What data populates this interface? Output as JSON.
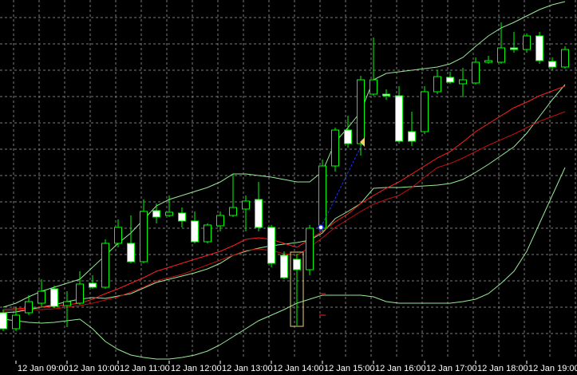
{
  "chart_data": {
    "type": "candlestick",
    "categories": [
      null,
      "12 Jan 09:00",
      null,
      null,
      null,
      "12 Jan 10:00",
      null,
      null,
      null,
      "12 Jan 11:00",
      null,
      null,
      null,
      "12 Jan 12:00",
      null,
      null,
      null,
      "12 Jan 13:00",
      null,
      null,
      null,
      "12 Jan 14:00",
      null,
      null,
      null,
      "12 Jan 15:00",
      null,
      null,
      null,
      "12 Jan 16:00",
      null,
      null,
      null,
      "12 Jan 17:00",
      null,
      null,
      null,
      "12 Jan 18:00",
      null,
      null,
      null,
      "12 Jan 19:00",
      null,
      null,
      null
    ],
    "open": [
      78,
      58,
      78,
      90,
      108,
      87,
      90,
      115,
      110,
      165,
      165,
      142,
      206,
      200,
      203,
      193,
      167,
      187,
      200,
      208,
      220,
      185,
      150,
      145,
      132,
      184,
      262,
      307,
      290,
      352,
      352,
      350,
      305,
      305,
      355,
      373,
      365,
      366,
      392,
      392,
      410,
      408,
      425,
      393,
      386
    ],
    "high": [
      82,
      85,
      100,
      120,
      112,
      105,
      130,
      125,
      170,
      195,
      200,
      220,
      215,
      225,
      210,
      205,
      190,
      205,
      252,
      225,
      242,
      188,
      155,
      152,
      188,
      270,
      310,
      325,
      375,
      423,
      358,
      362,
      330,
      362,
      382,
      380,
      385,
      398,
      400,
      442,
      430,
      428,
      430,
      398,
      412
    ],
    "low": [
      55,
      55,
      75,
      85,
      84,
      60,
      88,
      108,
      108,
      160,
      140,
      140,
      190,
      198,
      185,
      165,
      165,
      180,
      198,
      180,
      180,
      135,
      120,
      62,
      125,
      180,
      255,
      285,
      275,
      350,
      345,
      290,
      287,
      302,
      352,
      365,
      348,
      364,
      390,
      390,
      404,
      404,
      390,
      382,
      384
    ],
    "close": [
      58,
      75,
      92,
      105,
      86,
      92,
      114,
      110,
      165,
      185,
      142,
      205,
      198,
      204,
      193,
      167,
      188,
      200,
      210,
      218,
      185,
      140,
      122,
      132,
      184,
      262,
      307,
      290,
      370,
      370,
      350,
      293,
      293,
      355,
      374,
      367,
      370,
      392,
      394,
      410,
      408,
      425,
      394,
      386,
      408
    ],
    "up_color": "#00ff00",
    "down_color": "#ffffff",
    "series": [
      {
        "color": "#98e898",
        "values": [
          85,
          90,
          98,
          105,
          110,
          115,
          120,
          135,
          150,
          165,
          178,
          195,
          212,
          220,
          225,
          230,
          235,
          242,
          252,
          252,
          250,
          248,
          245,
          242,
          242,
          255,
          292,
          310,
          330,
          370,
          378,
          380,
          382,
          384,
          386,
          390,
          398,
          412,
          425,
          435,
          442,
          450,
          458,
          464,
          468
        ]
      },
      {
        "color": "#98e898",
        "values": [
          78,
          79,
          82,
          85,
          88,
          92,
          95,
          97,
          96,
          99,
          102,
          109,
          116,
          120,
          124,
          128,
          133,
          140,
          150,
          155,
          159,
          162,
          164,
          166,
          169,
          178,
          196,
          205,
          215,
          234,
          235,
          235,
          236,
          237,
          238,
          240,
          245,
          254,
          264,
          275,
          286,
          303,
          324,
          345,
          364
        ]
      },
      {
        "color": "#98e898",
        "values": [
          70,
          68,
          66,
          65,
          66,
          68,
          70,
          58,
          42,
          32,
          25,
          22,
          20,
          20,
          22,
          25,
          30,
          38,
          48,
          58,
          68,
          75,
          82,
          90,
          95,
          100,
          100,
          100,
          100,
          98,
          92,
          90,
          90,
          90,
          90,
          90,
          92,
          95,
          102,
          115,
          130,
          155,
          190,
          225,
          260
        ]
      },
      {
        "color": "#ff2020",
        "values": [
          82,
          83,
          84,
          85,
          86,
          88,
          90,
          95,
          102,
          108,
          115,
          122,
          130,
          135,
          140,
          145,
          150,
          155,
          162,
          170,
          172,
          170,
          165,
          160,
          170,
          180,
          192,
          202,
          215,
          225,
          234,
          242,
          252,
          262,
          272,
          280,
          292,
          305,
          315,
          325,
          335,
          342,
          350,
          356,
          362
        ]
      },
      {
        "color": "#c01010",
        "values": [
          80,
          81,
          82,
          82,
          83,
          85,
          87,
          90,
          94,
          98,
          104,
          110,
          118,
          122,
          126,
          132,
          138,
          144,
          150,
          156,
          158,
          156,
          152,
          150,
          160,
          172,
          185,
          195,
          205,
          214,
          220,
          225,
          235,
          248,
          260,
          265,
          272,
          280,
          288,
          295,
          302,
          310,
          318,
          324,
          330
        ]
      }
    ],
    "ylim": [
      20,
      470
    ],
    "grid": true
  }
}
